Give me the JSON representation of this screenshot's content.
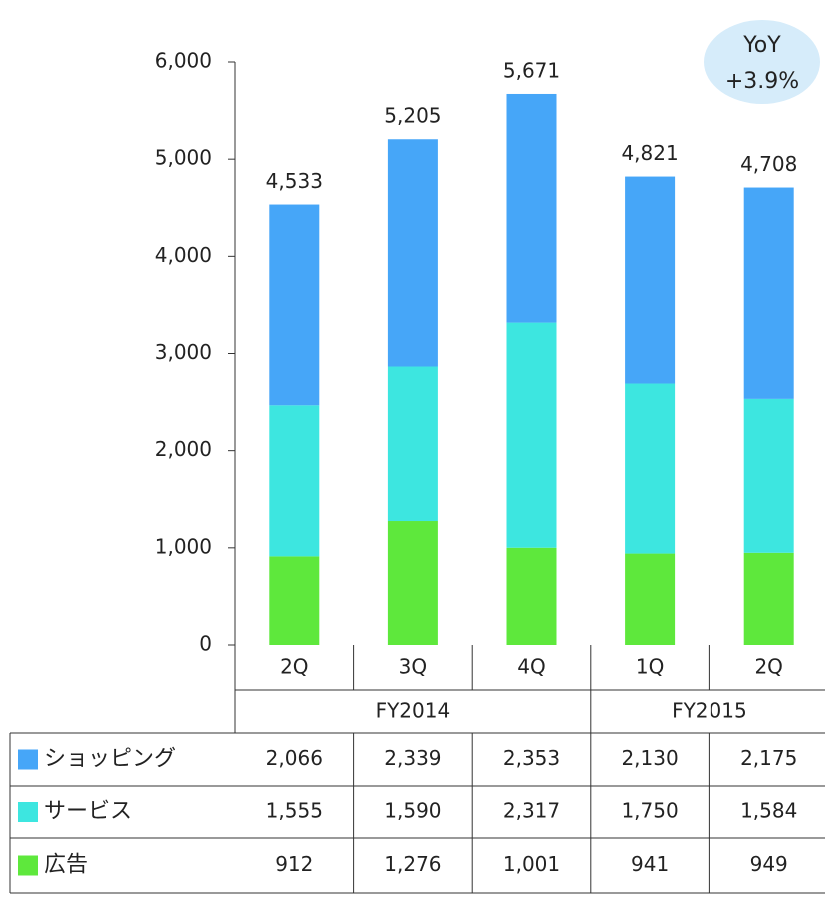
{
  "chart_data": {
    "type": "stacked_bar",
    "categories": [
      "2Q",
      "3Q",
      "4Q",
      "1Q",
      "2Q"
    ],
    "groups": [
      {
        "label": "FY2014",
        "span": 3
      },
      {
        "label": "FY2015",
        "span": 2
      }
    ],
    "series": [
      {
        "name": "ショッピング",
        "color": "#46a6f8",
        "values": [
          2066,
          2339,
          2353,
          2130,
          2175
        ],
        "value_labels": [
          "2,066",
          "2,339",
          "2,353",
          "2,130",
          "2,175"
        ]
      },
      {
        "name": "サービス",
        "color": "#3de6e0",
        "values": [
          1555,
          1590,
          2317,
          1750,
          1584
        ],
        "value_labels": [
          "1,555",
          "1,590",
          "2,317",
          "1,750",
          "1,584"
        ]
      },
      {
        "name": "広告",
        "color": "#5ee83c",
        "values": [
          912,
          1276,
          1001,
          941,
          949
        ],
        "value_labels": [
          "912",
          "1,276",
          "1,001",
          "941",
          "949"
        ]
      }
    ],
    "totals": [
      4533,
      5205,
      5671,
      4821,
      4708
    ],
    "total_labels": [
      "4,533",
      "5,205",
      "5,671",
      "4,821",
      "4,708"
    ],
    "ylim": [
      0,
      6000
    ],
    "yticks": [
      0,
      {
        "value": 1000,
        "label": "1,000"
      },
      {
        "value": 2000,
        "label": "2,000"
      },
      {
        "value": 3000,
        "label": "3,000"
      },
      {
        "value": 4000,
        "label": "4,000"
      },
      {
        "value": 5000,
        "label": "5,000"
      },
      {
        "value": 6000,
        "label": "6,000"
      }
    ],
    "annotation": [
      "YoY",
      "+3.9%"
    ]
  }
}
